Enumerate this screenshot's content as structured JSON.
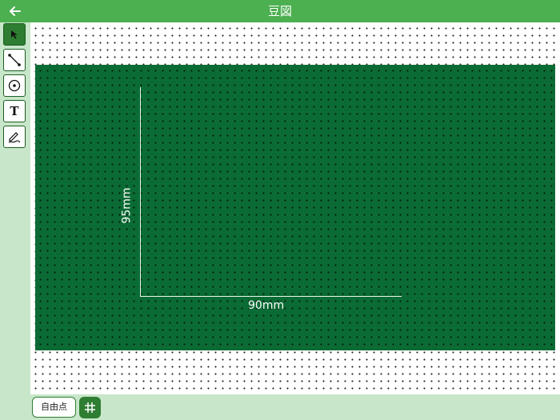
{
  "header": {
    "title": "豆図"
  },
  "toolbar": {
    "tools": [
      {
        "name": "select",
        "active": true
      },
      {
        "name": "line",
        "active": false
      },
      {
        "name": "point",
        "active": false
      },
      {
        "name": "text",
        "active": false
      },
      {
        "name": "draw",
        "active": false
      }
    ],
    "text_tool_label": "T"
  },
  "board": {
    "width_label": "90mm",
    "height_label": "95mm"
  },
  "bottom": {
    "free_point_label": "自由点"
  },
  "colors": {
    "header": "#4caf50",
    "board": "#0b6b34",
    "background": "#c8e6c9"
  }
}
